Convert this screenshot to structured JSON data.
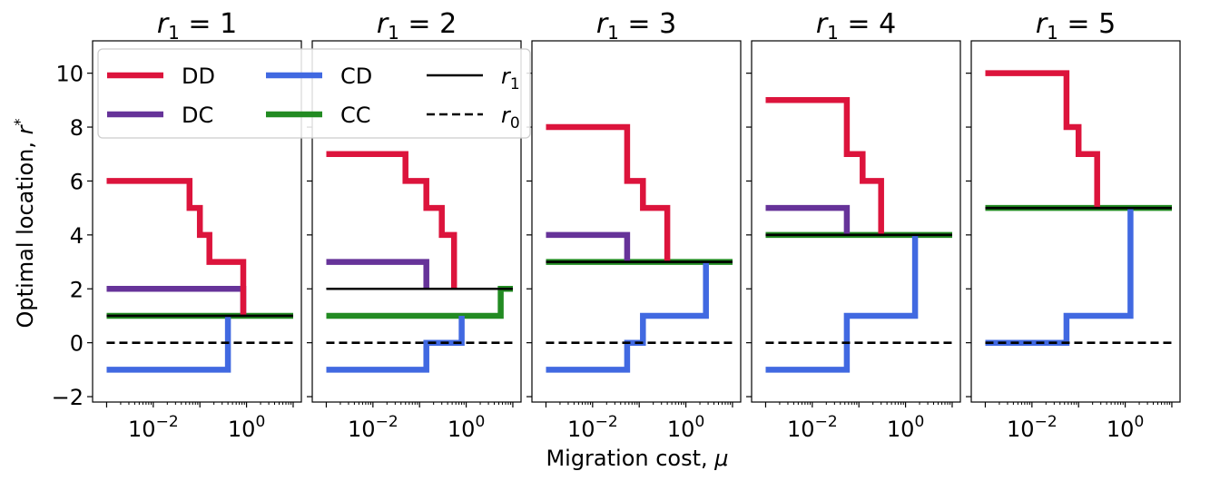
{
  "chart_data": {
    "type": "line",
    "ylabel": "Optimal location, r*",
    "xlabel": "Migration cost, μ",
    "xscale": "log",
    "xlim": [
      0.0005,
      15
    ],
    "ylim": [
      -2.2,
      11.2
    ],
    "yticks": [
      -2,
      0,
      2,
      4,
      6,
      8,
      10
    ],
    "ytick_labels": [
      "−2",
      "0",
      "2",
      "4",
      "6",
      "8",
      "10"
    ],
    "xtick_labels": [
      {
        "value": 0.01,
        "base": "10",
        "exp": "−2"
      },
      {
        "value": 1,
        "base": "10",
        "exp": "0"
      }
    ],
    "legend": {
      "placement": "top-left",
      "entries": [
        {
          "label": "DD",
          "series": "DD",
          "color": "#dc143c",
          "style": "thick"
        },
        {
          "label": "DC",
          "series": "DC",
          "color": "#663399",
          "style": "thick"
        },
        {
          "label": "CD",
          "series": "CD",
          "color": "#4169e1",
          "style": "thick"
        },
        {
          "label": "CC",
          "series": "CC",
          "color": "#228b22",
          "style": "thick"
        },
        {
          "label": "r",
          "sub": "1",
          "series": "r1",
          "color": "#000000",
          "style": "solid"
        },
        {
          "label": "r",
          "sub": "0",
          "series": "r0",
          "color": "#000000",
          "style": "dashed"
        }
      ]
    },
    "panels": [
      {
        "title_var": "r",
        "title_sub": "1",
        "title_eq": " = 1",
        "series": [
          {
            "key": "DD",
            "color": "#dc143c",
            "steps": [
              [
                0.001,
                6
              ],
              [
                0.06,
                5
              ],
              [
                0.1,
                4
              ],
              [
                0.16,
                3
              ],
              [
                0.85,
                1
              ]
            ],
            "end": 0.85
          },
          {
            "key": "DC",
            "color": "#663399",
            "steps": [
              [
                0.001,
                2
              ],
              [
                0.85,
                1
              ]
            ],
            "end": 0.85
          },
          {
            "key": "CD",
            "color": "#4169e1",
            "steps": [
              [
                0.001,
                -1
              ],
              [
                0.4,
                1
              ]
            ],
            "end": 0.4
          },
          {
            "key": "CC",
            "color": "#228b22",
            "steps": [
              [
                0.001,
                1
              ]
            ],
            "end": 10
          },
          {
            "key": "r1",
            "color": "#000000",
            "value": 1,
            "start": 0.001,
            "end": 10
          },
          {
            "key": "r0",
            "color": "#000000",
            "value": 0,
            "start": 0.001,
            "end": 10
          }
        ]
      },
      {
        "title_var": "r",
        "title_sub": "1",
        "title_eq": " = 2",
        "series": [
          {
            "key": "DD",
            "color": "#dc143c",
            "steps": [
              [
                0.001,
                7
              ],
              [
                0.05,
                6
              ],
              [
                0.14,
                5
              ],
              [
                0.3,
                4
              ],
              [
                0.55,
                2
              ]
            ],
            "end": 0.55
          },
          {
            "key": "DC",
            "color": "#663399",
            "steps": [
              [
                0.001,
                3
              ],
              [
                0.14,
                2
              ]
            ],
            "end": 0.14
          },
          {
            "key": "CD",
            "color": "#4169e1",
            "steps": [
              [
                0.001,
                -1
              ],
              [
                0.14,
                0
              ],
              [
                0.8,
                1
              ]
            ],
            "end": 0.8
          },
          {
            "key": "CC",
            "color": "#228b22",
            "steps": [
              [
                0.001,
                1
              ],
              [
                5.5,
                2
              ]
            ],
            "end": 10
          },
          {
            "key": "r1",
            "color": "#000000",
            "value": 2,
            "start": 0.001,
            "end": 10
          },
          {
            "key": "r0",
            "color": "#000000",
            "value": 0,
            "start": 0.001,
            "end": 10
          }
        ]
      },
      {
        "title_var": "r",
        "title_sub": "1",
        "title_eq": " = 3",
        "series": [
          {
            "key": "DD",
            "color": "#dc143c",
            "steps": [
              [
                0.001,
                8
              ],
              [
                0.055,
                6
              ],
              [
                0.12,
                5
              ],
              [
                0.4,
                3
              ]
            ],
            "end": 0.4
          },
          {
            "key": "DC",
            "color": "#663399",
            "steps": [
              [
                0.001,
                4
              ],
              [
                0.055,
                3
              ]
            ],
            "end": 0.055
          },
          {
            "key": "CD",
            "color": "#4169e1",
            "steps": [
              [
                0.001,
                -1
              ],
              [
                0.055,
                0
              ],
              [
                0.12,
                1
              ],
              [
                2.7,
                3
              ]
            ],
            "end": 2.7
          },
          {
            "key": "CC",
            "color": "#228b22",
            "steps": [
              [
                0.001,
                3
              ]
            ],
            "end": 10
          },
          {
            "key": "r1",
            "color": "#000000",
            "value": 3,
            "start": 0.001,
            "end": 10
          },
          {
            "key": "r0",
            "color": "#000000",
            "value": 0,
            "start": 0.001,
            "end": 10
          }
        ]
      },
      {
        "title_var": "r",
        "title_sub": "1",
        "title_eq": " = 4",
        "series": [
          {
            "key": "DD",
            "color": "#dc143c",
            "steps": [
              [
                0.001,
                9
              ],
              [
                0.055,
                7
              ],
              [
                0.12,
                6
              ],
              [
                0.3,
                4
              ]
            ],
            "end": 0.3
          },
          {
            "key": "DC",
            "color": "#663399",
            "steps": [
              [
                0.001,
                5
              ],
              [
                0.055,
                4
              ]
            ],
            "end": 0.055
          },
          {
            "key": "CD",
            "color": "#4169e1",
            "steps": [
              [
                0.001,
                -1
              ],
              [
                0.055,
                1
              ],
              [
                1.6,
                4
              ]
            ],
            "end": 1.6
          },
          {
            "key": "CC",
            "color": "#228b22",
            "steps": [
              [
                0.001,
                4
              ]
            ],
            "end": 10
          },
          {
            "key": "r1",
            "color": "#000000",
            "value": 4,
            "start": 0.001,
            "end": 10
          },
          {
            "key": "r0",
            "color": "#000000",
            "value": 0,
            "start": 0.001,
            "end": 10
          }
        ]
      },
      {
        "title_var": "r",
        "title_sub": "1",
        "title_eq": " = 5",
        "series": [
          {
            "key": "DD",
            "color": "#dc143c",
            "steps": [
              [
                0.001,
                10
              ],
              [
                0.055,
                8
              ],
              [
                0.1,
                7
              ],
              [
                0.25,
                5
              ]
            ],
            "end": 0.25
          },
          {
            "key": "CD",
            "color": "#4169e1",
            "steps": [
              [
                0.001,
                0
              ],
              [
                0.055,
                1
              ],
              [
                1.3,
                5
              ]
            ],
            "end": 1.3
          },
          {
            "key": "CC",
            "color": "#228b22",
            "steps": [
              [
                0.001,
                5
              ]
            ],
            "end": 10
          },
          {
            "key": "r1",
            "color": "#000000",
            "value": 5,
            "start": 0.001,
            "end": 10
          },
          {
            "key": "r0",
            "color": "#000000",
            "value": 0,
            "start": 0.001,
            "end": 10
          }
        ]
      }
    ]
  }
}
